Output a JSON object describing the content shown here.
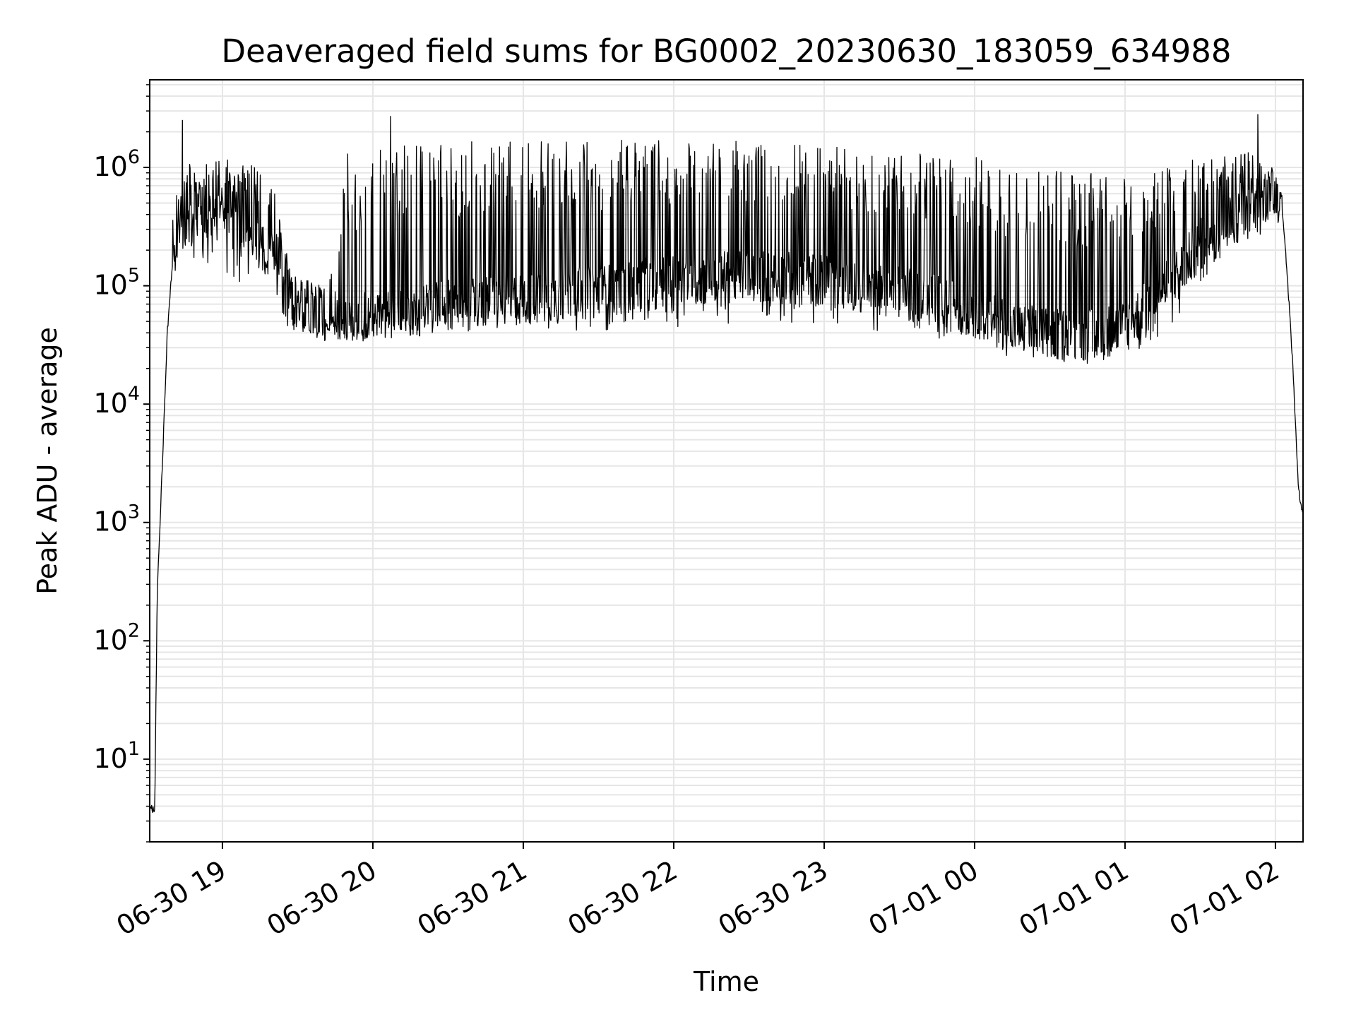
{
  "chart_data": {
    "type": "line",
    "title": "Deaveraged field sums for BG0002_20230630_183059_634988",
    "xlabel": "Time",
    "ylabel": "Peak ADU - average",
    "yscale": "log",
    "ylim": [
      2,
      5500000
    ],
    "xlim": [
      "2023-06-30 18:31",
      "2023-07-01 02:11"
    ],
    "grid": true,
    "line_color": "#000000",
    "grid_color": "#e6e6e6",
    "x_ticks": [
      {
        "t": "2023-06-30 19:00",
        "label": "06-30 19"
      },
      {
        "t": "2023-06-30 20:00",
        "label": "06-30 20"
      },
      {
        "t": "2023-06-30 21:00",
        "label": "06-30 21"
      },
      {
        "t": "2023-06-30 22:00",
        "label": "06-30 22"
      },
      {
        "t": "2023-06-30 23:00",
        "label": "06-30 23"
      },
      {
        "t": "2023-07-01 00:00",
        "label": "07-01 00"
      },
      {
        "t": "2023-07-01 01:00",
        "label": "07-01 01"
      },
      {
        "t": "2023-07-01 02:00",
        "label": "07-01 02"
      }
    ],
    "y_ticks": [
      {
        "value": 10,
        "base": "10",
        "exp": "1"
      },
      {
        "value": 100,
        "base": "10",
        "exp": "2"
      },
      {
        "value": 1000,
        "base": "10",
        "exp": "3"
      },
      {
        "value": 10000,
        "base": "10",
        "exp": "4"
      },
      {
        "value": 100000,
        "base": "10",
        "exp": "5"
      },
      {
        "value": 1000000,
        "base": "10",
        "exp": "6"
      }
    ],
    "envelope": {
      "times": [
        "2023-06-30 18:31",
        "2023-06-30 18:33",
        "2023-06-30 18:34",
        "2023-06-30 18:36",
        "2023-06-30 18:38",
        "2023-06-30 18:40",
        "2023-06-30 18:45",
        "2023-06-30 18:50",
        "2023-06-30 18:55",
        "2023-06-30 19:00",
        "2023-06-30 19:10",
        "2023-06-30 19:20",
        "2023-06-30 19:25",
        "2023-06-30 19:30",
        "2023-06-30 19:40",
        "2023-06-30 19:50",
        "2023-06-30 20:00",
        "2023-06-30 20:15",
        "2023-06-30 20:30",
        "2023-06-30 20:45",
        "2023-06-30 21:00",
        "2023-06-30 21:30",
        "2023-06-30 22:00",
        "2023-06-30 22:30",
        "2023-06-30 23:00",
        "2023-06-30 23:30",
        "2023-07-01 00:00",
        "2023-07-01 00:15",
        "2023-07-01 00:30",
        "2023-07-01 00:45",
        "2023-07-01 01:00",
        "2023-07-01 01:15",
        "2023-07-01 01:30",
        "2023-07-01 01:40",
        "2023-07-01 01:50",
        "2023-07-01 01:55",
        "2023-07-01 02:00",
        "2023-07-01 02:03",
        "2023-07-01 02:05",
        "2023-07-01 02:07",
        "2023-07-01 02:09",
        "2023-07-01 02:10",
        "2023-07-01 02:11"
      ],
      "baseline": [
        3.8,
        3.8,
        250,
        3000,
        40000,
        150000,
        300000,
        350000,
        400000,
        450000,
        300000,
        150000,
        80000,
        55000,
        50000,
        48000,
        50000,
        55000,
        60000,
        65000,
        70000,
        80000,
        100000,
        110000,
        100000,
        80000,
        55000,
        40000,
        35000,
        35000,
        40000,
        80000,
        200000,
        300000,
        380000,
        420000,
        550000,
        400000,
        100000,
        20000,
        2200,
        1500,
        1200
      ],
      "peak": [
        3.8,
        3.8,
        250,
        3000,
        45000,
        400000,
        1300000,
        1000000,
        1100000,
        1200000,
        1100000,
        800000,
        200000,
        120000,
        100000,
        1000000,
        1300000,
        1600000,
        1650000,
        1700000,
        1700000,
        1700000,
        1750000,
        1650000,
        1550000,
        1350000,
        1250000,
        1100000,
        1000000,
        900000,
        900000,
        1050000,
        1200000,
        1300000,
        1400000,
        1300000,
        900000,
        600000,
        200000,
        30000,
        2500,
        1600,
        1300
      ],
      "dip_floor": [
        3.8,
        3.8,
        250,
        3000,
        40000,
        150000,
        200000,
        150000,
        120000,
        100000,
        80000,
        60000,
        45000,
        38000,
        38000,
        36000,
        38000,
        38000,
        40000,
        42000,
        42000,
        42000,
        45000,
        48000,
        45000,
        40000,
        30000,
        25000,
        23000,
        22000,
        26000,
        30000,
        80000,
        200000,
        300000,
        320000,
        450000,
        350000,
        90000,
        20000,
        2200,
        1500,
        1200
      ]
    },
    "spikes": [
      {
        "t": "2023-06-30 18:44",
        "value": 2500000
      },
      {
        "t": "2023-06-30 20:07",
        "value": 2700000
      },
      {
        "t": "2023-07-01 01:53",
        "value": 2800000
      },
      {
        "t": "2023-06-30 19:50",
        "value": 1300000
      },
      {
        "t": "2023-06-30 20:03",
        "value": 1400000
      }
    ],
    "annotations": []
  }
}
